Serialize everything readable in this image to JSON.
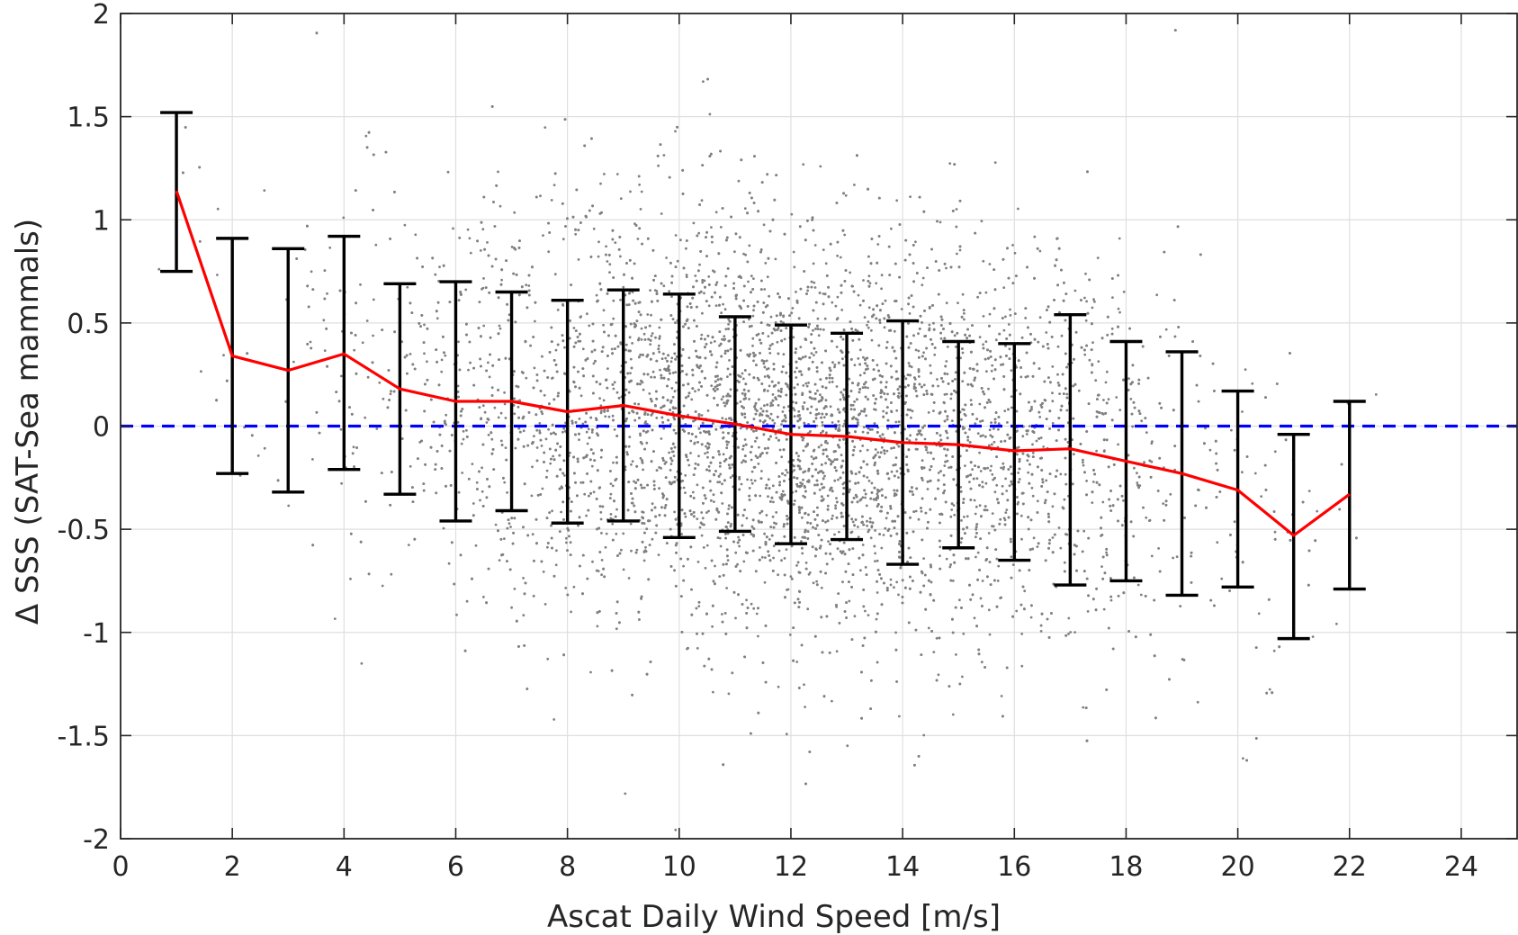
{
  "chart_data": {
    "type": "scatter",
    "title": "",
    "xlabel": "Ascat Daily Wind Speed [m/s]",
    "ylabel": "Δ SSS (SAT-Sea mammals)",
    "xlim": [
      0,
      25
    ],
    "ylim": [
      -2,
      2
    ],
    "xticks": [
      0,
      2,
      4,
      6,
      8,
      10,
      12,
      14,
      16,
      18,
      20,
      22,
      24
    ],
    "yticks": [
      -2,
      -1.5,
      -1,
      -0.5,
      0,
      0.5,
      1,
      1.5,
      2
    ],
    "xtick_labels": [
      "0",
      "2",
      "4",
      "6",
      "8",
      "10",
      "12",
      "14",
      "16",
      "18",
      "20",
      "22",
      "24"
    ],
    "ytick_labels": [
      "-2",
      "-1.5",
      "-1",
      "-0.5",
      "0",
      "0.5",
      "1",
      "1.5",
      "2"
    ],
    "grid": true,
    "reference_line": {
      "y": 0,
      "color": "#0000ff",
      "style": "dashed"
    },
    "mean_line": {
      "color": "#ff0000",
      "x": [
        1,
        2,
        3,
        4,
        5,
        6,
        7,
        8,
        9,
        10,
        11,
        12,
        13,
        14,
        15,
        16,
        17,
        18,
        19,
        20,
        21,
        22
      ],
      "y": [
        1.14,
        0.34,
        0.27,
        0.35,
        0.18,
        0.12,
        0.12,
        0.07,
        0.1,
        0.05,
        0.01,
        -0.04,
        -0.05,
        -0.08,
        -0.09,
        -0.12,
        -0.11,
        -0.17,
        -0.23,
        -0.31,
        -0.53,
        -0.33
      ]
    },
    "error_bars": {
      "color": "#000000",
      "x": [
        1,
        2,
        3,
        4,
        5,
        6,
        7,
        8,
        9,
        10,
        11,
        12,
        13,
        14,
        15,
        16,
        17,
        18,
        19,
        20,
        21,
        22
      ],
      "lower": [
        0.75,
        -0.23,
        -0.32,
        -0.21,
        -0.33,
        -0.46,
        -0.41,
        -0.47,
        -0.46,
        -0.54,
        -0.51,
        -0.57,
        -0.55,
        -0.67,
        -0.59,
        -0.65,
        -0.77,
        -0.75,
        -0.82,
        -0.78,
        -1.03,
        -0.79
      ],
      "upper": [
        1.52,
        0.91,
        0.86,
        0.92,
        0.69,
        0.7,
        0.65,
        0.61,
        0.66,
        0.64,
        0.53,
        0.49,
        0.45,
        0.51,
        0.41,
        0.4,
        0.54,
        0.41,
        0.36,
        0.17,
        -0.04,
        0.12
      ]
    },
    "scatter": {
      "color": "#808080",
      "description_count": 9000,
      "x_range": [
        0.5,
        22.5
      ]
    },
    "colors": {
      "axis": "#262626",
      "grid": "#dfdfdf",
      "scatter": "#808080",
      "mean": "#ff0000",
      "zero": "#0000ff",
      "errorbar": "#000000"
    }
  }
}
